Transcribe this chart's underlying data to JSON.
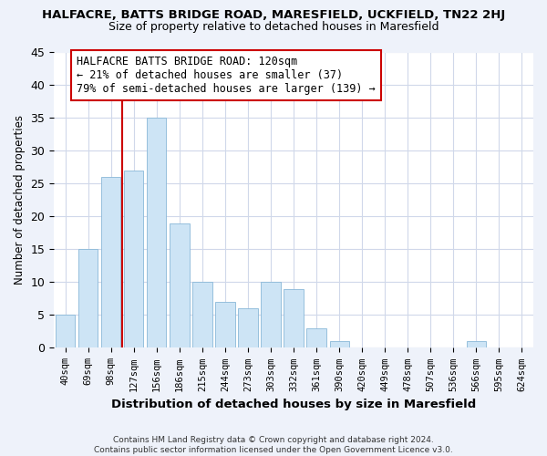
{
  "title": "HALFACRE, BATTS BRIDGE ROAD, MARESFIELD, UCKFIELD, TN22 2HJ",
  "subtitle": "Size of property relative to detached houses in Maresfield",
  "xlabel": "Distribution of detached houses by size in Maresfield",
  "ylabel": "Number of detached properties",
  "bin_labels": [
    "40sqm",
    "69sqm",
    "98sqm",
    "127sqm",
    "156sqm",
    "186sqm",
    "215sqm",
    "244sqm",
    "273sqm",
    "303sqm",
    "332sqm",
    "361sqm",
    "390sqm",
    "420sqm",
    "449sqm",
    "478sqm",
    "507sqm",
    "536sqm",
    "566sqm",
    "595sqm",
    "624sqm"
  ],
  "bar_values": [
    5,
    15,
    26,
    27,
    35,
    19,
    10,
    7,
    6,
    10,
    9,
    3,
    1,
    0,
    0,
    0,
    0,
    0,
    1,
    0,
    0
  ],
  "bar_color": "#cde4f5",
  "bar_edge_color": "#8ab8d8",
  "vline_x_index": 3.0,
  "vline_color": "#cc0000",
  "ylim": [
    0,
    45
  ],
  "annotation_title": "HALFACRE BATTS BRIDGE ROAD: 120sqm",
  "annotation_line1": "← 21% of detached houses are smaller (37)",
  "annotation_line2": "79% of semi-detached houses are larger (139) →",
  "footer_line1": "Contains HM Land Registry data © Crown copyright and database right 2024.",
  "footer_line2": "Contains public sector information licensed under the Open Government Licence v3.0.",
  "background_color": "#eef2fa",
  "plot_bg_color": "#ffffff",
  "grid_color": "#d0d8ea"
}
